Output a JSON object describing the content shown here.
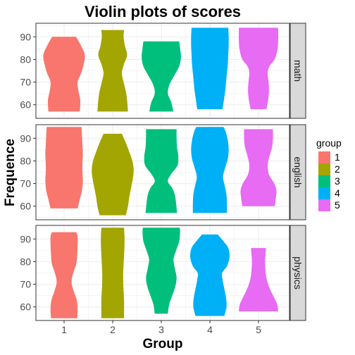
{
  "chart_data": {
    "type": "violin",
    "title": "Violin plots of scores",
    "xlabel": "Group",
    "ylabel": "Frequence",
    "categories": [
      "1",
      "2",
      "3",
      "4",
      "5"
    ],
    "legend": {
      "title": "group",
      "position": "right"
    },
    "colors": [
      "#F8766D",
      "#A3A500",
      "#00BF7D",
      "#00B0F6",
      "#E76BF3"
    ],
    "ylim": [
      54,
      96
    ],
    "yticks": [
      60,
      70,
      80,
      90
    ],
    "grid": true,
    "facets": [
      {
        "name": "math",
        "groups": [
          {
            "group": "1",
            "min": 57,
            "max": 90,
            "widths": [
              [
                57,
                0.72
              ],
              [
                62,
                0.74
              ],
              [
                66,
                0.66
              ],
              [
                70,
                0.62
              ],
              [
                74,
                0.78
              ],
              [
                78,
                0.9
              ],
              [
                82,
                0.95
              ],
              [
                86,
                0.78
              ],
              [
                90,
                0.55
              ]
            ]
          },
          {
            "group": "2",
            "min": 57,
            "max": 93,
            "widths": [
              [
                57,
                0.7
              ],
              [
                62,
                0.66
              ],
              [
                66,
                0.6
              ],
              [
                70,
                0.5
              ],
              [
                74,
                0.42
              ],
              [
                78,
                0.52
              ],
              [
                82,
                0.66
              ],
              [
                86,
                0.56
              ],
              [
                90,
                0.5
              ],
              [
                93,
                0.52
              ]
            ]
          },
          {
            "group": "3",
            "min": 57,
            "max": 88,
            "widths": [
              [
                57,
                0.55
              ],
              [
                61,
                0.46
              ],
              [
                65,
                0.3
              ],
              [
                69,
                0.38
              ],
              [
                73,
                0.6
              ],
              [
                77,
                0.82
              ],
              [
                81,
                0.9
              ],
              [
                85,
                0.86
              ],
              [
                88,
                0.82
              ]
            ]
          },
          {
            "group": "4",
            "min": 58,
            "max": 94,
            "widths": [
              [
                58,
                0.58
              ],
              [
                62,
                0.64
              ],
              [
                66,
                0.7
              ],
              [
                70,
                0.74
              ],
              [
                74,
                0.78
              ],
              [
                78,
                0.82
              ],
              [
                82,
                0.84
              ],
              [
                86,
                0.86
              ],
              [
                90,
                0.86
              ],
              [
                94,
                0.84
              ]
            ]
          },
          {
            "group": "5",
            "min": 58,
            "max": 94,
            "widths": [
              [
                58,
                0.36
              ],
              [
                62,
                0.44
              ],
              [
                66,
                0.48
              ],
              [
                70,
                0.46
              ],
              [
                74,
                0.42
              ],
              [
                77,
                0.5
              ],
              [
                80,
                0.74
              ],
              [
                84,
                0.86
              ],
              [
                88,
                0.9
              ],
              [
                94,
                0.9
              ]
            ]
          }
        ]
      },
      {
        "name": "english",
        "groups": [
          {
            "group": "1",
            "min": 59,
            "max": 95,
            "widths": [
              [
                59,
                0.62
              ],
              [
                63,
                0.72
              ],
              [
                67,
                0.82
              ],
              [
                71,
                0.86
              ],
              [
                75,
                0.84
              ],
              [
                79,
                0.84
              ],
              [
                83,
                0.86
              ],
              [
                87,
                0.84
              ],
              [
                91,
                0.82
              ],
              [
                95,
                0.8
              ]
            ]
          },
          {
            "group": "2",
            "min": 56,
            "max": 92,
            "widths": [
              [
                56,
                0.6
              ],
              [
                60,
                0.7
              ],
              [
                64,
                0.76
              ],
              [
                68,
                0.84
              ],
              [
                72,
                0.92
              ],
              [
                76,
                0.96
              ],
              [
                80,
                0.9
              ],
              [
                84,
                0.76
              ],
              [
                88,
                0.6
              ],
              [
                92,
                0.42
              ]
            ]
          },
          {
            "group": "3",
            "min": 57,
            "max": 94,
            "widths": [
              [
                57,
                0.72
              ],
              [
                61,
                0.68
              ],
              [
                65,
                0.62
              ],
              [
                68,
                0.5
              ],
              [
                71,
                0.3
              ],
              [
                74,
                0.44
              ],
              [
                78,
                0.74
              ],
              [
                82,
                0.78
              ],
              [
                86,
                0.72
              ],
              [
                90,
                0.7
              ],
              [
                94,
                0.7
              ]
            ]
          },
          {
            "group": "4",
            "min": 57,
            "max": 95,
            "widths": [
              [
                57,
                0.78
              ],
              [
                61,
                0.78
              ],
              [
                65,
                0.76
              ],
              [
                69,
                0.68
              ],
              [
                73,
                0.6
              ],
              [
                77,
                0.7
              ],
              [
                81,
                0.82
              ],
              [
                85,
                0.86
              ],
              [
                89,
                0.82
              ],
              [
                93,
                0.72
              ],
              [
                95,
                0.62
              ]
            ]
          },
          {
            "group": "5",
            "min": 60,
            "max": 94,
            "widths": [
              [
                60,
                0.74
              ],
              [
                64,
                0.8
              ],
              [
                67,
                0.82
              ],
              [
                70,
                0.72
              ],
              [
                74,
                0.48
              ],
              [
                78,
                0.42
              ],
              [
                82,
                0.5
              ],
              [
                86,
                0.62
              ],
              [
                90,
                0.66
              ],
              [
                94,
                0.66
              ]
            ]
          }
        ]
      },
      {
        "name": "physics",
        "groups": [
          {
            "group": "1",
            "min": 55,
            "max": 93,
            "widths": [
              [
                55,
                0.6
              ],
              [
                59,
                0.62
              ],
              [
                63,
                0.58
              ],
              [
                67,
                0.44
              ],
              [
                71,
                0.34
              ],
              [
                75,
                0.42
              ],
              [
                79,
                0.56
              ],
              [
                83,
                0.6
              ],
              [
                87,
                0.62
              ],
              [
                91,
                0.62
              ],
              [
                93,
                0.56
              ]
            ]
          },
          {
            "group": "2",
            "min": 55,
            "max": 95,
            "widths": [
              [
                55,
                0.52
              ],
              [
                59,
                0.52
              ],
              [
                63,
                0.52
              ],
              [
                67,
                0.5
              ],
              [
                71,
                0.48
              ],
              [
                75,
                0.48
              ],
              [
                79,
                0.5
              ],
              [
                83,
                0.52
              ],
              [
                87,
                0.54
              ],
              [
                91,
                0.54
              ],
              [
                95,
                0.52
              ]
            ]
          },
          {
            "group": "3",
            "min": 57,
            "max": 95,
            "widths": [
              [
                57,
                0.3
              ],
              [
                61,
                0.36
              ],
              [
                65,
                0.5
              ],
              [
                69,
                0.64
              ],
              [
                73,
                0.7
              ],
              [
                77,
                0.62
              ],
              [
                81,
                0.56
              ],
              [
                85,
                0.68
              ],
              [
                89,
                0.82
              ],
              [
                93,
                0.86
              ],
              [
                95,
                0.84
              ]
            ]
          },
          {
            "group": "4",
            "min": 56,
            "max": 92,
            "widths": [
              [
                56,
                0.66
              ],
              [
                60,
                0.76
              ],
              [
                64,
                0.74
              ],
              [
                68,
                0.66
              ],
              [
                72,
                0.58
              ],
              [
                75,
                0.56
              ],
              [
                78,
                0.78
              ],
              [
                82,
                0.9
              ],
              [
                86,
                0.84
              ],
              [
                89,
                0.62
              ],
              [
                92,
                0.36
              ]
            ]
          },
          {
            "group": "5",
            "min": 58,
            "max": 86,
            "widths": [
              [
                58,
                0.9
              ],
              [
                61,
                0.86
              ],
              [
                64,
                0.72
              ],
              [
                68,
                0.52
              ],
              [
                72,
                0.38
              ],
              [
                76,
                0.32
              ],
              [
                80,
                0.3
              ],
              [
                83,
                0.32
              ],
              [
                86,
                0.34
              ]
            ]
          }
        ]
      }
    ]
  }
}
